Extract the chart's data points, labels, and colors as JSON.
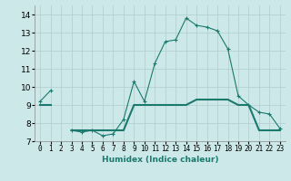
{
  "xlabel": "Humidex (Indice chaleur)",
  "x_values": [
    0,
    1,
    2,
    3,
    4,
    5,
    6,
    7,
    8,
    9,
    10,
    11,
    12,
    13,
    14,
    15,
    16,
    17,
    18,
    19,
    20,
    21,
    22,
    23
  ],
  "line1_y": [
    9.2,
    9.8,
    null,
    7.6,
    7.5,
    7.6,
    7.3,
    7.4,
    8.2,
    10.3,
    9.2,
    11.3,
    12.5,
    12.6,
    13.8,
    13.4,
    13.3,
    13.1,
    12.1,
    9.5,
    9.0,
    8.6,
    8.5,
    7.7
  ],
  "line2_y": [
    9.0,
    9.0,
    null,
    7.6,
    7.6,
    7.6,
    7.6,
    7.6,
    7.6,
    9.0,
    9.0,
    9.0,
    9.0,
    9.0,
    9.0,
    9.3,
    9.3,
    9.3,
    9.3,
    9.0,
    9.0,
    7.6,
    7.6,
    7.6
  ],
  "line_color": "#1a7a6e",
  "bg_color": "#cce8e8",
  "grid_color": "#b0cccc",
  "ylim": [
    7.0,
    14.5
  ],
  "xlim": [
    -0.5,
    23.5
  ],
  "yticks": [
    7,
    8,
    9,
    10,
    11,
    12,
    13,
    14
  ],
  "xtick_labels": [
    "0",
    "1",
    "2",
    "3",
    "4",
    "5",
    "6",
    "7",
    "8",
    "9",
    "10",
    "11",
    "12",
    "13",
    "14",
    "15",
    "16",
    "17",
    "18",
    "19",
    "20",
    "21",
    "22",
    "23"
  ],
  "figsize": [
    3.2,
    2.0
  ],
  "dpi": 100
}
